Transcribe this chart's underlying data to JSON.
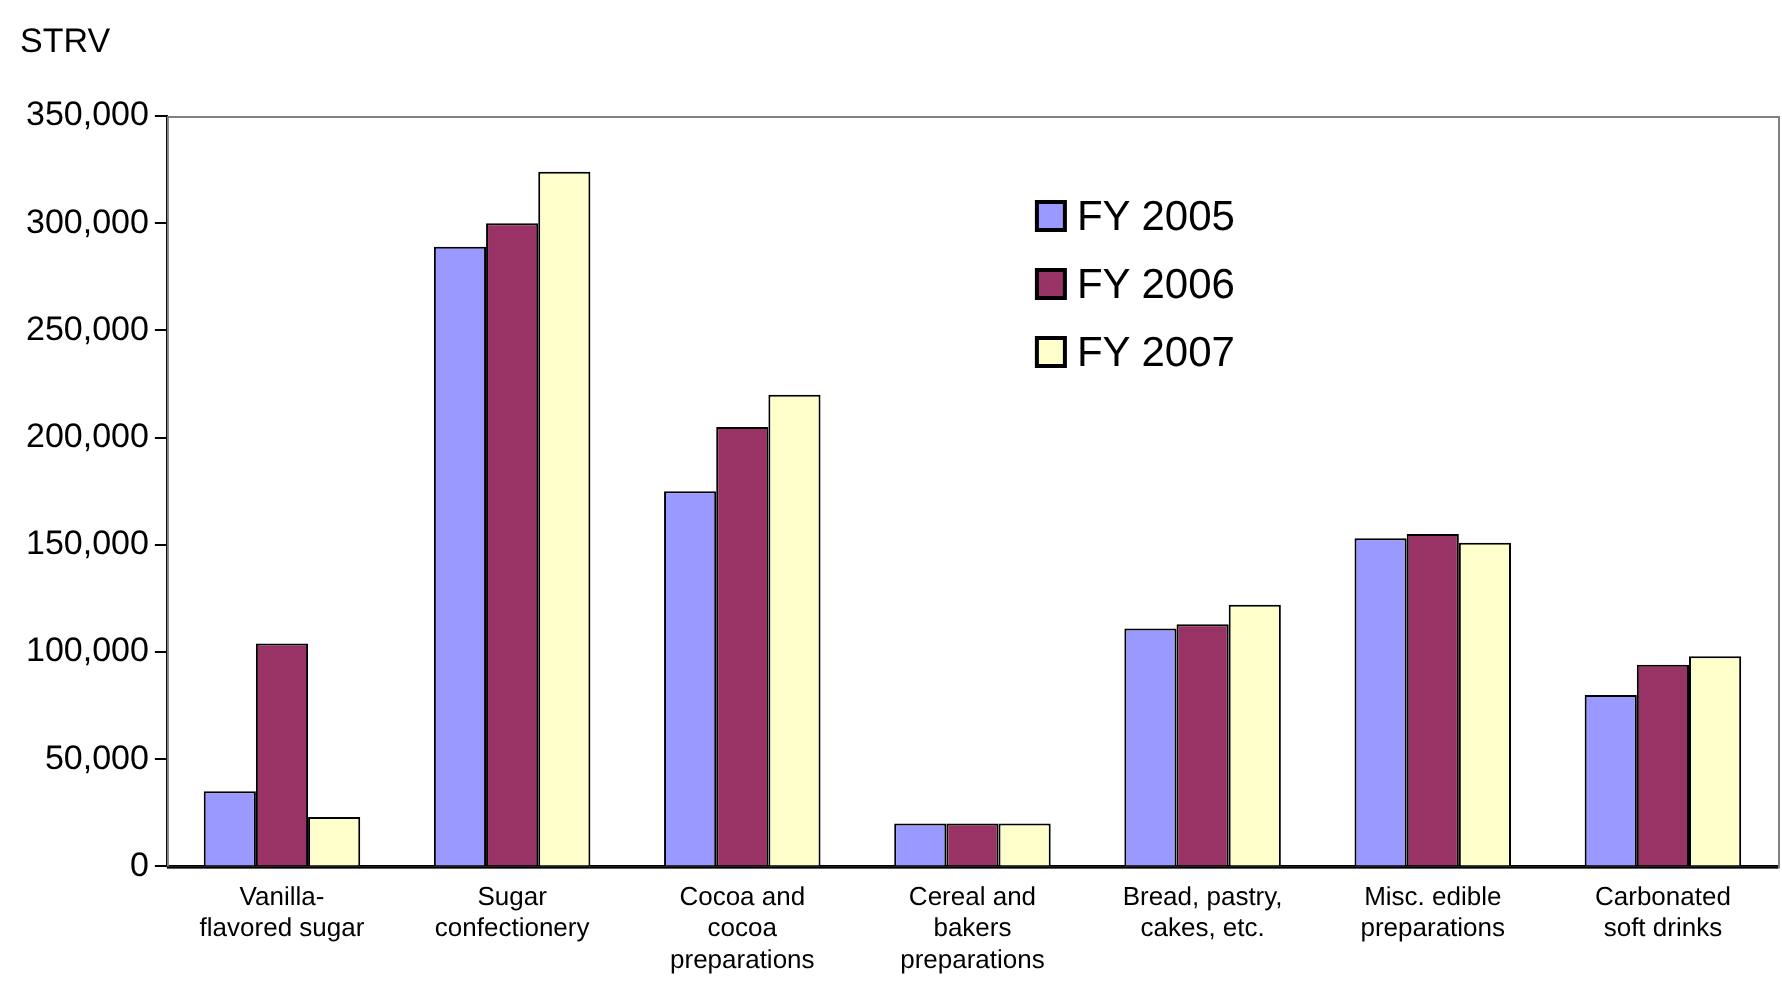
{
  "chart_data": {
    "type": "bar",
    "ylabel": "STRV",
    "categories": [
      "Vanilla-flavored sugar",
      "Sugar confectionery",
      "Cocoa and cocoa preparations",
      "Cereal and bakers preparations",
      "Bread, pastry, cakes, etc.",
      "Misc. edible preparations",
      "Carbonated soft drinks"
    ],
    "series": [
      {
        "name": "FY 2005",
        "color": "#9999ff",
        "values": [
          35000,
          289000,
          175000,
          20000,
          111000,
          153000,
          80000
        ]
      },
      {
        "name": "FY 2006",
        "color": "#993366",
        "values": [
          104000,
          300000,
          205000,
          20000,
          113000,
          155000,
          94000
        ]
      },
      {
        "name": "FY 2007",
        "color": "#ffffcc",
        "values": [
          23000,
          324000,
          220000,
          20000,
          122000,
          151000,
          98000
        ]
      }
    ],
    "ylim": [
      0,
      350000
    ],
    "yticks": [
      0,
      {
        "value": 50000,
        "label": "50,000"
      },
      {
        "value": 100000,
        "label": "100,000"
      },
      {
        "value": 150000,
        "label": "150,000"
      },
      {
        "value": 200000,
        "label": "200,000"
      },
      {
        "value": 250000,
        "label": "250,000"
      },
      {
        "value": 300000,
        "label": "300,000"
      },
      {
        "value": 350000,
        "label": "350,000"
      }
    ],
    "grid": false,
    "legend": "top right"
  }
}
